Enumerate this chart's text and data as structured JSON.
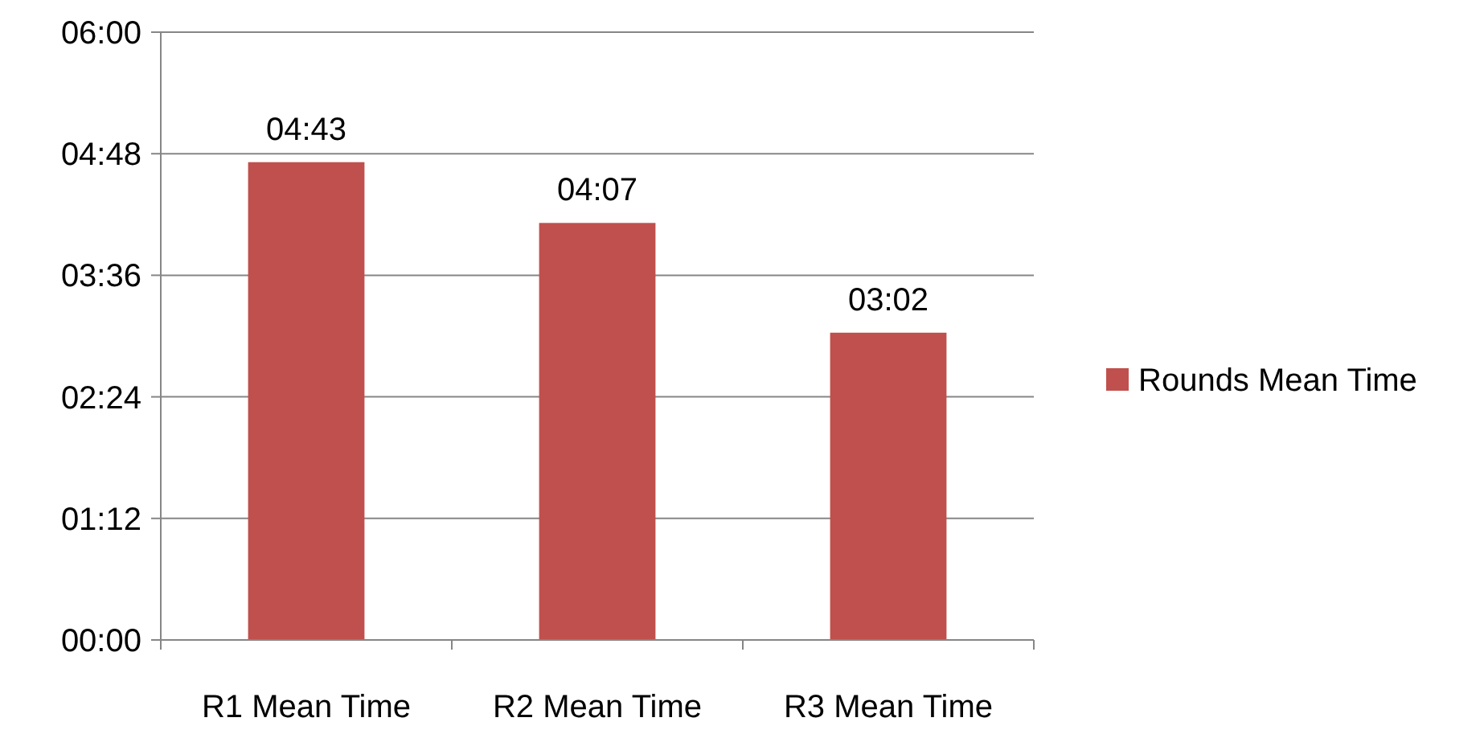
{
  "chart_data": {
    "type": "bar",
    "categories": [
      "R1 Mean Time",
      "R2 Mean Time",
      "R3 Mean Time"
    ],
    "series": [
      {
        "name": "Rounds Mean Time",
        "color": "#c0504d",
        "values": [
          283,
          247,
          182
        ],
        "value_labels": [
          "04:43",
          "04:07",
          "03:02"
        ]
      }
    ],
    "ylim": [
      0,
      360
    ],
    "yticks": [
      {
        "value": 0,
        "label": "00:00"
      },
      {
        "value": 72,
        "label": "01:12"
      },
      {
        "value": 144,
        "label": "02:24"
      },
      {
        "value": 216,
        "label": "03:36"
      },
      {
        "value": 288,
        "label": "04:48"
      },
      {
        "value": 360,
        "label": "06:00"
      }
    ],
    "grid": "y",
    "legend": "right"
  }
}
